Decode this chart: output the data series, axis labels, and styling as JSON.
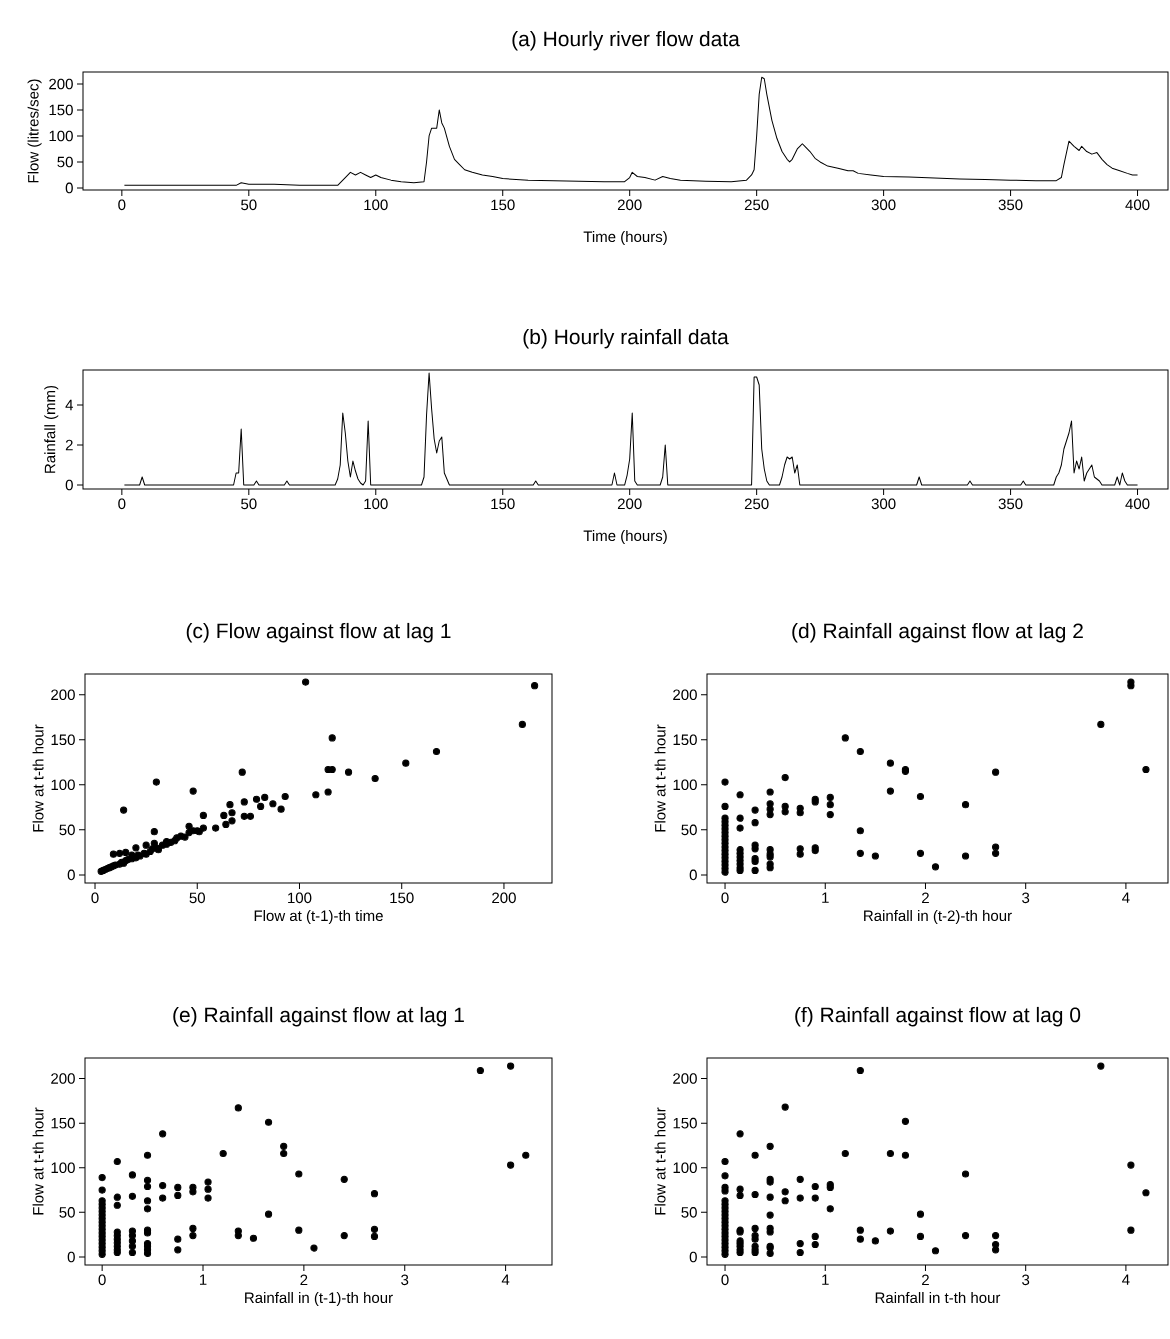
{
  "chart_data": [
    {
      "type": "line",
      "title": "(a) Hourly river flow data",
      "xlabel": "Time (hours)",
      "ylabel": "Flow (litres/sec)",
      "color": "#000000",
      "xlim": [
        -15.3,
        412
      ],
      "ylim": [
        -4,
        223
      ],
      "xticks": [
        0,
        50,
        100,
        150,
        200,
        250,
        300,
        350,
        400
      ],
      "yticks": [
        0,
        50,
        100,
        150,
        200
      ],
      "x": [
        1,
        45,
        47,
        50,
        60,
        70,
        85,
        88,
        90,
        92,
        94,
        96,
        98,
        100,
        102,
        106,
        110,
        115,
        119,
        120,
        121,
        122,
        124,
        125,
        126,
        127,
        129,
        131,
        133,
        135,
        138,
        142,
        146,
        150,
        160,
        170,
        180,
        190,
        198,
        200,
        201,
        203,
        206,
        210,
        213,
        216,
        220,
        230,
        240,
        246,
        248,
        249,
        250,
        251,
        252,
        253,
        254,
        256,
        258,
        260,
        262,
        263,
        264,
        266,
        267,
        268,
        269,
        271,
        273,
        275,
        278,
        282,
        286,
        288,
        290,
        295,
        300,
        310,
        320,
        330,
        340,
        350,
        360,
        368,
        370,
        371,
        373,
        375,
        377,
        378,
        380,
        382,
        384,
        386,
        388,
        390,
        393,
        396,
        398,
        400
      ],
      "values": [
        5,
        5,
        10,
        7,
        7,
        5,
        5,
        20,
        30,
        25,
        30,
        25,
        20,
        25,
        20,
        15,
        12,
        10,
        12,
        50,
        100,
        115,
        115,
        150,
        125,
        115,
        80,
        55,
        45,
        35,
        30,
        25,
        22,
        18,
        15,
        14,
        13,
        12,
        12,
        20,
        30,
        22,
        20,
        15,
        22,
        18,
        15,
        13,
        12,
        15,
        25,
        35,
        100,
        180,
        213,
        210,
        180,
        130,
        95,
        70,
        55,
        50,
        55,
        75,
        80,
        85,
        80,
        70,
        57,
        50,
        42,
        38,
        33,
        33,
        28,
        25,
        22,
        21,
        19,
        17,
        16,
        15,
        14,
        14,
        20,
        45,
        90,
        80,
        72,
        80,
        70,
        65,
        68,
        55,
        45,
        38,
        33,
        28,
        25,
        25
      ]
    },
    {
      "type": "line",
      "title": "(b) Hourly rainfall data",
      "xlabel": "Time (hours)",
      "ylabel": "Rainfall (mm)",
      "color": "#000000",
      "xlim": [
        -15.3,
        412
      ],
      "ylim": [
        -0.2,
        5.75
      ],
      "xticks": [
        0,
        50,
        100,
        150,
        200,
        250,
        300,
        350,
        400
      ],
      "yticks": [
        0,
        2,
        4
      ],
      "x": [
        1,
        7,
        8,
        9,
        44,
        45,
        46,
        47,
        48,
        52,
        53,
        54,
        64,
        65,
        66,
        84,
        85,
        86,
        87,
        88,
        89,
        90,
        91,
        92,
        93,
        94,
        95,
        96,
        97,
        98,
        118,
        119,
        120,
        121,
        122,
        123,
        124,
        125,
        126,
        127,
        128,
        129,
        162,
        163,
        164,
        193,
        194,
        195,
        198,
        199,
        200,
        201,
        202,
        203,
        212,
        213,
        214,
        215,
        248,
        249,
        250,
        251,
        252,
        253,
        254,
        255,
        259,
        260,
        261,
        262,
        263,
        264,
        265,
        266,
        267,
        313,
        314,
        315,
        333,
        334,
        335,
        354,
        355,
        356,
        367,
        368,
        369,
        370,
        371,
        372,
        373,
        374,
        375,
        376,
        377,
        378,
        379,
        380,
        382,
        383,
        385,
        386,
        391,
        392,
        393,
        394,
        395,
        396,
        400
      ],
      "values": [
        0,
        0,
        0.4,
        0,
        0,
        0.6,
        0.6,
        2.8,
        0,
        0,
        0.2,
        0,
        0,
        0.2,
        0,
        0,
        0.3,
        1,
        3.6,
        2.6,
        1.2,
        0.4,
        1.2,
        0.7,
        0.3,
        0.1,
        0,
        0.2,
        3.2,
        0,
        0,
        0.4,
        3.5,
        5.6,
        3.8,
        2.3,
        1.6,
        2.2,
        2.4,
        0.6,
        0.3,
        0,
        0,
        0.2,
        0,
        0,
        0.6,
        0,
        0,
        0.5,
        1.3,
        3.6,
        0.2,
        0,
        0,
        0.4,
        2,
        0,
        0,
        5.4,
        5.4,
        5,
        1.8,
        0.8,
        0.2,
        0,
        0,
        0.4,
        1,
        1.4,
        1.3,
        1.4,
        0.6,
        1,
        0,
        0,
        0.4,
        0,
        0,
        0.2,
        0,
        0,
        0.2,
        0,
        0,
        0.4,
        0.6,
        1,
        1.8,
        2.2,
        2.6,
        3.2,
        0.6,
        1.2,
        0.8,
        1.4,
        0.2,
        0.6,
        1,
        0.4,
        0.2,
        0,
        0,
        0.4,
        0,
        0.6,
        0.2,
        0,
        0
      ]
    },
    {
      "type": "scatter",
      "title": "(c) Flow against flow at lag 1",
      "xlabel": "Flow at (t-1)-th time",
      "ylabel": "Flow at t-th hour",
      "color": "#000000",
      "marker": "circle",
      "xlim": [
        -4.9,
        223.5
      ],
      "ylim": [
        -9,
        223
      ],
      "xticks": [
        0,
        50,
        100,
        150,
        200
      ],
      "yticks": [
        0,
        50,
        100,
        150,
        200
      ],
      "x": [
        103,
        215,
        209,
        116,
        167,
        152,
        114,
        116,
        124,
        137,
        108,
        114,
        72,
        30,
        48,
        14,
        29,
        9,
        93,
        91,
        87,
        83,
        81,
        79,
        76,
        73,
        73,
        66,
        67,
        67,
        63,
        64,
        53,
        59,
        53,
        46,
        51,
        3,
        4,
        5,
        6,
        7,
        8,
        9,
        10,
        12,
        13,
        14,
        15,
        16,
        18,
        20,
        21,
        22,
        24,
        25,
        27,
        28,
        30,
        31,
        33,
        35,
        37,
        39,
        40,
        42,
        44,
        46,
        48,
        50,
        12,
        20,
        25,
        15,
        18,
        35,
        29
      ],
      "values": [
        214,
        210,
        167,
        152,
        137,
        124,
        117,
        117,
        114,
        107,
        89,
        92,
        114,
        103,
        93,
        72,
        48,
        23,
        87,
        73,
        79,
        86,
        76,
        84,
        65,
        81,
        65,
        78,
        69,
        60,
        66,
        56,
        66,
        52,
        52,
        54,
        48,
        4,
        5,
        6,
        7,
        8,
        9,
        10,
        11,
        12,
        14,
        13,
        16,
        17,
        18,
        19,
        22,
        21,
        24,
        23,
        26,
        29,
        30,
        28,
        33,
        34,
        36,
        38,
        41,
        43,
        42,
        47,
        49,
        49,
        24,
        30,
        33,
        25,
        22,
        37,
        35
      ]
    },
    {
      "type": "scatter",
      "title": "(d) Rainfall against flow at lag 2",
      "xlabel": "Rainfall in (t-2)-th hour",
      "ylabel": "Flow at t-th hour",
      "color": "#000000",
      "marker": "circle",
      "xlim": [
        -0.18,
        4.42
      ],
      "ylim": [
        -9,
        223
      ],
      "xticks": [
        0,
        1,
        2,
        3,
        4
      ],
      "yticks": [
        0,
        50,
        100,
        150,
        200
      ],
      "x": [
        0,
        0,
        0,
        0,
        0,
        0,
        0,
        0,
        0,
        0,
        0,
        0,
        0,
        0,
        0,
        0,
        0,
        0,
        0.15,
        0.15,
        0.15,
        0.15,
        0.15,
        0.15,
        0.15,
        0.15,
        0.15,
        0.15,
        0.3,
        0.3,
        0.3,
        0.3,
        0.3,
        0.3,
        0.3,
        0.45,
        0.45,
        0.45,
        0.45,
        0.45,
        0.45,
        0.45,
        0.45,
        0.45,
        0.6,
        0.6,
        0.6,
        0.75,
        0.75,
        0.75,
        0.75,
        0.9,
        0.9,
        0.9,
        0.9,
        1.05,
        1.05,
        1.05,
        1.2,
        1.35,
        1.35,
        1.35,
        1.5,
        1.65,
        1.65,
        1.8,
        1.8,
        1.95,
        1.95,
        2.1,
        2.4,
        2.4,
        2.7,
        2.7,
        2.7,
        3.75,
        4.05,
        4.05,
        4.2
      ],
      "values": [
        3,
        7,
        11,
        15,
        19,
        23,
        27,
        31,
        35,
        39,
        43,
        47,
        51,
        55,
        59,
        63,
        76,
        103,
        89,
        63,
        52,
        28,
        24,
        20,
        16,
        12,
        8,
        5,
        72,
        58,
        33,
        29,
        18,
        15,
        5,
        92,
        79,
        73,
        67,
        28,
        23,
        20,
        12,
        8,
        108,
        76,
        70,
        74,
        69,
        29,
        23,
        84,
        81,
        30,
        27,
        86,
        78,
        67,
        152,
        137,
        49,
        24,
        21,
        124,
        93,
        117,
        115,
        87,
        24,
        9,
        78,
        21,
        114,
        31,
        24,
        167,
        214,
        210,
        117
      ]
    },
    {
      "type": "scatter",
      "title": "(e) Rainfall against flow at lag 1",
      "xlabel": "Rainfall in (t-1)-th hour",
      "ylabel": "Flow at t-th hour",
      "color": "#000000",
      "marker": "circle",
      "xlim": [
        -0.17,
        4.46
      ],
      "ylim": [
        -9,
        223
      ],
      "xticks": [
        0,
        1,
        2,
        3,
        4
      ],
      "yticks": [
        0,
        50,
        100,
        150,
        200
      ],
      "x": [
        0,
        0,
        0,
        0,
        0,
        0,
        0,
        0,
        0,
        0,
        0,
        0,
        0,
        0,
        0,
        0,
        0,
        0,
        0.15,
        0.15,
        0.15,
        0.15,
        0.15,
        0.15,
        0.15,
        0.15,
        0.15,
        0.15,
        0.3,
        0.3,
        0.3,
        0.3,
        0.3,
        0.3,
        0.3,
        0.45,
        0.45,
        0.45,
        0.45,
        0.45,
        0.45,
        0.45,
        0.45,
        0.45,
        0.45,
        0.45,
        0.6,
        0.6,
        0.6,
        0.75,
        0.75,
        0.75,
        0.75,
        0.9,
        0.9,
        0.9,
        0.9,
        1.05,
        1.05,
        1.05,
        1.2,
        1.35,
        1.35,
        1.35,
        1.5,
        1.65,
        1.65,
        1.8,
        1.8,
        1.95,
        1.95,
        2.1,
        2.4,
        2.4,
        2.7,
        2.7,
        2.7,
        3.75,
        4.05,
        4.05,
        4.2
      ],
      "values": [
        3,
        7,
        11,
        15,
        19,
        23,
        27,
        31,
        35,
        39,
        43,
        47,
        51,
        55,
        59,
        63,
        75,
        89,
        107,
        67,
        58,
        28,
        24,
        20,
        16,
        12,
        8,
        5,
        92,
        68,
        29,
        24,
        18,
        12,
        5,
        114,
        86,
        79,
        63,
        54,
        30,
        27,
        15,
        12,
        8,
        4,
        138,
        80,
        66,
        78,
        69,
        20,
        8,
        78,
        73,
        32,
        24,
        84,
        76,
        66,
        116,
        167,
        29,
        24,
        21,
        151,
        48,
        124,
        116,
        93,
        30,
        10,
        87,
        24,
        71,
        31,
        23,
        209,
        214,
        103,
        114
      ]
    },
    {
      "type": "scatter",
      "title": "(f) Rainfall against flow at lag 0",
      "xlabel": "Rainfall in t-th hour",
      "ylabel": "Flow at t-th hour",
      "color": "#000000",
      "marker": "circle",
      "xlim": [
        -0.18,
        4.42
      ],
      "ylim": [
        -9,
        223
      ],
      "xticks": [
        0,
        1,
        2,
        3,
        4
      ],
      "yticks": [
        0,
        50,
        100,
        150,
        200
      ],
      "x": [
        0,
        0,
        0,
        0,
        0,
        0,
        0,
        0,
        0,
        0,
        0,
        0,
        0,
        0,
        0,
        0,
        0,
        0,
        0,
        0,
        0.15,
        0.15,
        0.15,
        0.15,
        0.15,
        0.15,
        0.15,
        0.15,
        0.15,
        0.15,
        0.3,
        0.3,
        0.3,
        0.3,
        0.3,
        0.3,
        0.3,
        0.3,
        0.45,
        0.45,
        0.45,
        0.45,
        0.45,
        0.45,
        0.45,
        0.45,
        0.45,
        0.45,
        0.6,
        0.6,
        0.6,
        0.75,
        0.75,
        0.75,
        0.75,
        0.9,
        0.9,
        0.9,
        0.9,
        1.05,
        1.05,
        1.05,
        1.2,
        1.35,
        1.35,
        1.35,
        1.5,
        1.65,
        1.65,
        1.8,
        1.8,
        1.95,
        1.95,
        2.1,
        2.4,
        2.4,
        2.7,
        2.7,
        2.7,
        3.75,
        4.05,
        4.05,
        4.2
      ],
      "values": [
        3,
        7,
        11,
        15,
        19,
        23,
        27,
        31,
        35,
        39,
        43,
        47,
        51,
        55,
        59,
        63,
        74,
        78,
        91,
        107,
        138,
        76,
        69,
        30,
        28,
        18,
        15,
        12,
        8,
        5,
        114,
        70,
        32,
        24,
        20,
        12,
        8,
        5,
        124,
        87,
        84,
        67,
        47,
        32,
        28,
        12,
        10,
        4,
        168,
        73,
        63,
        87,
        66,
        15,
        5,
        79,
        66,
        23,
        14,
        81,
        78,
        54,
        116,
        209,
        30,
        20,
        18,
        116,
        29,
        152,
        114,
        48,
        23,
        7,
        93,
        24,
        24,
        14,
        8,
        214,
        103,
        30,
        72
      ]
    }
  ]
}
